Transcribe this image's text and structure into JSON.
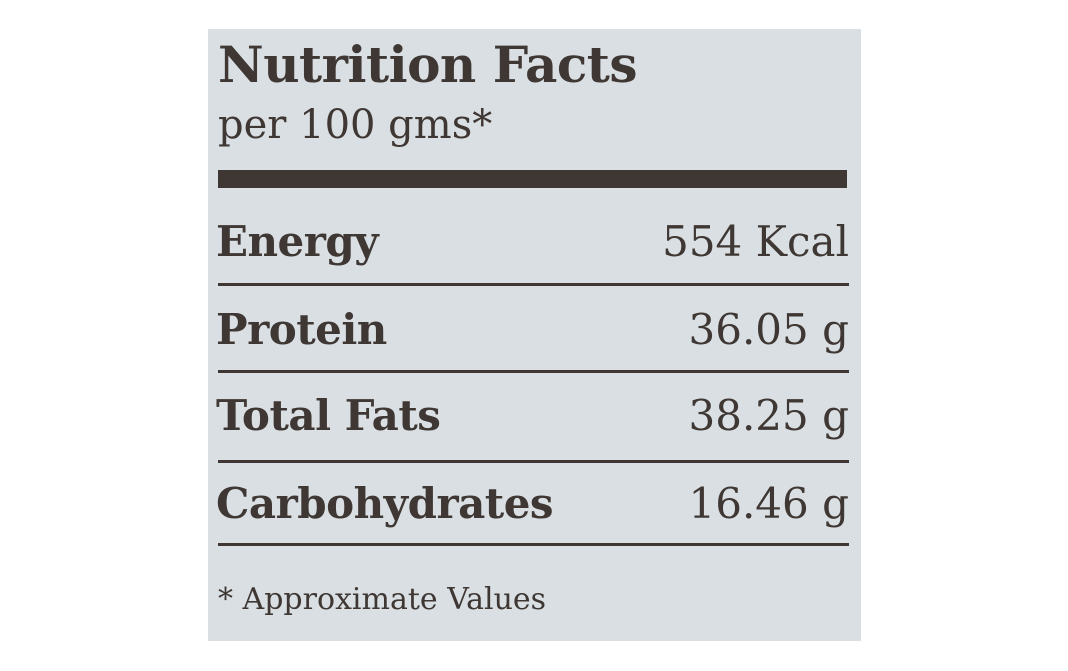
{
  "label": {
    "title": "Nutrition Facts",
    "serving": "per 100 gms*",
    "nutrients": [
      {
        "name": "Energy",
        "value": "554 Kcal"
      },
      {
        "name": "Protein",
        "value": "36.05 g"
      },
      {
        "name": "Total Fats",
        "value": "38.25 g"
      },
      {
        "name": "Carbohydrates",
        "value": "16.46 g"
      }
    ],
    "footnote": "* Approximate Values"
  },
  "colors": {
    "panel_background": "#d9dfe3",
    "text": "#3f3733",
    "page_background": "#ffffff"
  }
}
